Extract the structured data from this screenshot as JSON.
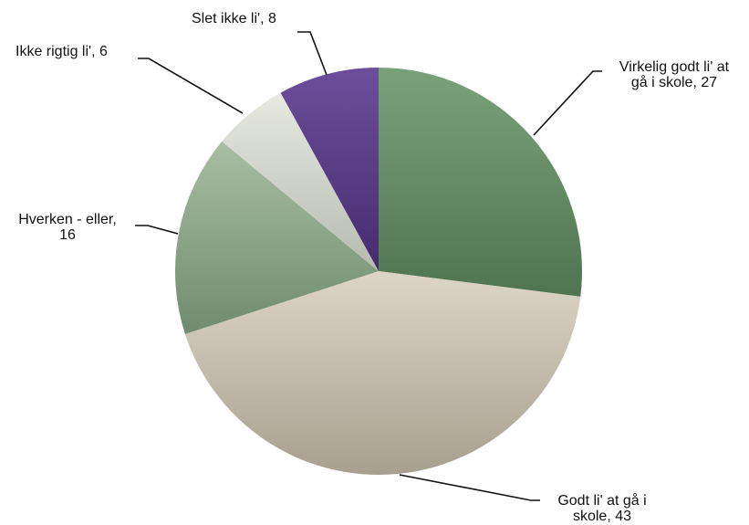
{
  "chart_data": {
    "type": "pie",
    "title": "",
    "start_angle_deg": 0,
    "direction": "clockwise",
    "slices": [
      {
        "label": "Virkelig godt li' at gå i skole",
        "value": 27,
        "color": "#5f8a62",
        "color_light": "#7aa27a",
        "color_dark": "#4e7550"
      },
      {
        "label": "Godt li' at gå i skole",
        "value": 43,
        "color": "#c9c1b0",
        "color_light": "#ddd5c6",
        "color_dark": "#a7a08f"
      },
      {
        "label": "Hverken - eller",
        "value": 16,
        "color": "#8aa586",
        "color_light": "#a9bea4",
        "color_dark": "#6f8b6d"
      },
      {
        "label": "Ikke rigtig li'",
        "value": 6,
        "color": "#cfd3c7",
        "color_light": "#e7e9e1",
        "color_dark": "#b6bbae"
      },
      {
        "label": "Slet ikke li'",
        "value": 8,
        "color": "#563c85",
        "color_light": "#6b4f9b",
        "color_dark": "#452c6e"
      }
    ],
    "data_labels": [
      {
        "line1": "Virkelig godt li' at",
        "line2": "gå i skole, 27"
      },
      {
        "line1": "Godt li' at gå i",
        "line2": "skole, 43"
      },
      {
        "line1": "Hverken - eller,",
        "line2": "16"
      },
      {
        "line1": "Ikke rigtig li', 6",
        "line2": ""
      },
      {
        "line1": "Slet ikke li', 8",
        "line2": ""
      }
    ]
  }
}
